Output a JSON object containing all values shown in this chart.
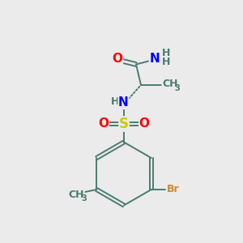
{
  "background_color": "#ebebeb",
  "bond_color": "#4a7c6f",
  "atom_colors": {
    "O": "#ff0000",
    "N": "#0000ff",
    "S": "#cccc00",
    "Br": "#cc8833",
    "H": "#4a7c6f",
    "C": "#4a7c6f"
  },
  "figsize": [
    3.0,
    3.0
  ],
  "dpi": 100,
  "fs_large": 11,
  "fs_small": 9,
  "fs_sub": 7
}
